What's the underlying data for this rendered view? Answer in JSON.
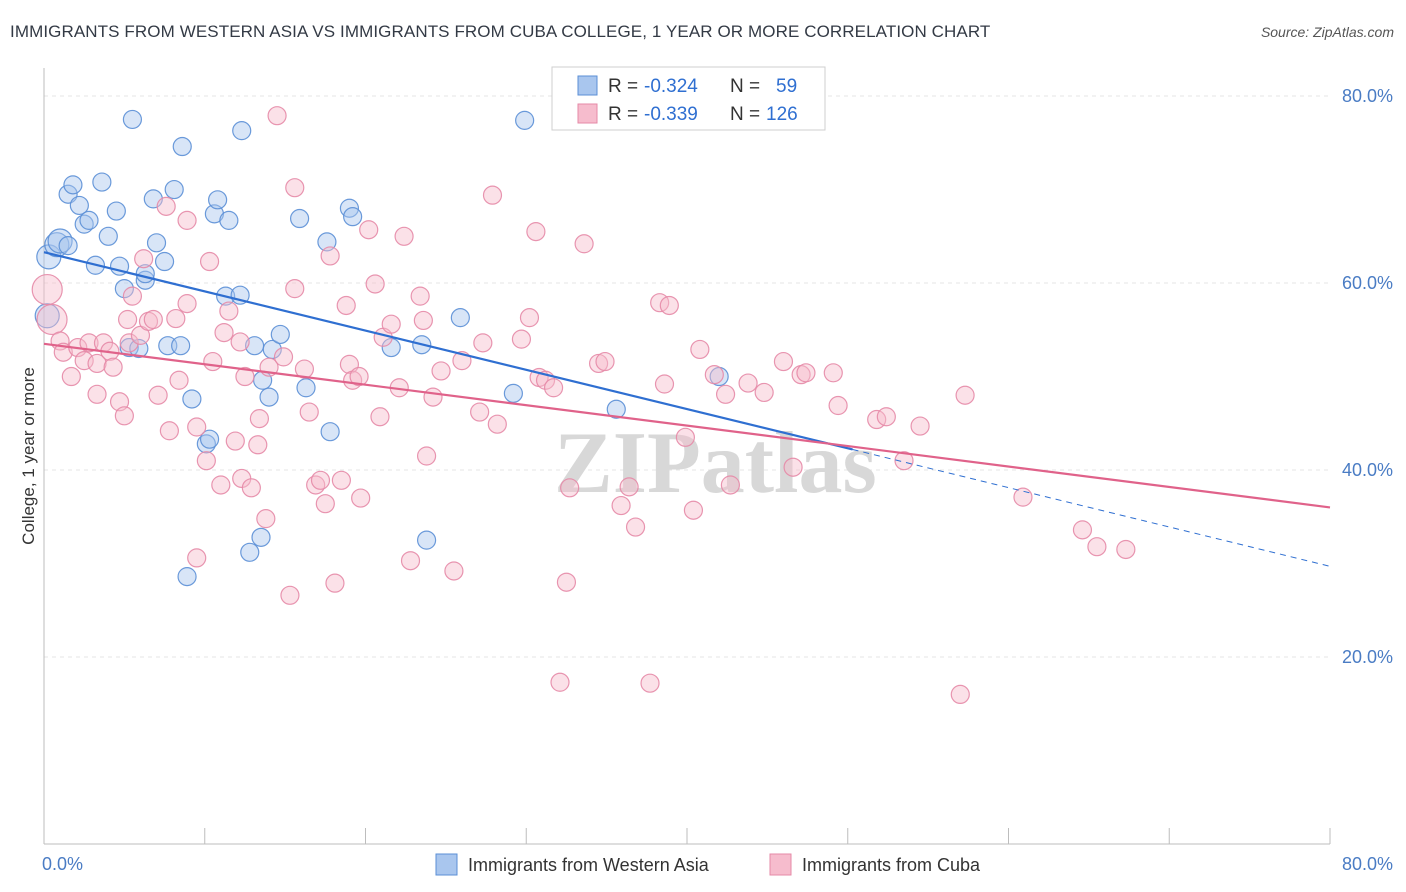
{
  "chart_data": {
    "type": "scatter",
    "title": "IMMIGRANTS FROM WESTERN ASIA VS IMMIGRANTS FROM CUBA COLLEGE, 1 YEAR OR MORE CORRELATION CHART",
    "source": "Source: ZipAtlas.com",
    "ylabel": "College, 1 year or more",
    "xlim": [
      0,
      80
    ],
    "ylim": [
      0,
      83
    ],
    "x_tick_labels": [
      {
        "value": 0,
        "label": "0.0%"
      },
      {
        "value": 80,
        "label": "80.0%"
      }
    ],
    "y_tick_labels": [
      {
        "value": 20,
        "label": "20.0%"
      },
      {
        "value": 40,
        "label": "40.0%"
      },
      {
        "value": 60,
        "label": "60.0%"
      },
      {
        "value": 80,
        "label": "80.0%"
      }
    ],
    "watermark": "ZIPatlas",
    "legend": [
      {
        "r_label": "R =",
        "r_value": "-0.324",
        "n_label": "N =",
        "n_value": "59"
      },
      {
        "r_label": "R =",
        "r_value": "-0.339",
        "n_label": "N =",
        "n_value": "126"
      }
    ],
    "series": [
      {
        "name": "Immigrants from Western Asia",
        "color": "#5b8fd6",
        "fill": "#a9c6ee",
        "trend": {
          "x0": 0,
          "y0": 63.3,
          "x1": 50.3,
          "y1": 42.2,
          "dash_x1": 80,
          "dash_y1": 29.7
        },
        "points": [
          [
            0.3,
            62.8
          ],
          [
            0.8,
            64.1
          ],
          [
            0.2,
            56.5
          ],
          [
            1.0,
            64.5
          ],
          [
            1.5,
            64.0
          ],
          [
            1.5,
            69.5
          ],
          [
            1.8,
            70.5
          ],
          [
            2.2,
            68.3
          ],
          [
            2.5,
            66.3
          ],
          [
            2.8,
            66.7
          ],
          [
            3.2,
            61.9
          ],
          [
            3.6,
            70.8
          ],
          [
            4.0,
            65.0
          ],
          [
            4.5,
            67.7
          ],
          [
            4.7,
            61.8
          ],
          [
            5.0,
            59.4
          ],
          [
            5.3,
            53.1
          ],
          [
            5.5,
            77.5
          ],
          [
            5.9,
            53.0
          ],
          [
            6.3,
            60.3
          ],
          [
            6.3,
            61.0
          ],
          [
            6.8,
            69.0
          ],
          [
            7.0,
            64.3
          ],
          [
            7.5,
            62.3
          ],
          [
            7.7,
            53.3
          ],
          [
            8.1,
            70.0
          ],
          [
            8.5,
            53.3
          ],
          [
            8.6,
            74.6
          ],
          [
            8.9,
            28.6
          ],
          [
            9.2,
            47.6
          ],
          [
            10.1,
            42.8
          ],
          [
            10.3,
            43.3
          ],
          [
            10.6,
            67.4
          ],
          [
            10.8,
            68.9
          ],
          [
            11.3,
            58.6
          ],
          [
            11.5,
            66.7
          ],
          [
            12.3,
            76.3
          ],
          [
            12.2,
            58.7
          ],
          [
            12.8,
            31.2
          ],
          [
            13.1,
            53.3
          ],
          [
            13.5,
            32.8
          ],
          [
            13.6,
            49.6
          ],
          [
            14.0,
            47.8
          ],
          [
            14.2,
            52.9
          ],
          [
            14.7,
            54.5
          ],
          [
            15.9,
            66.9
          ],
          [
            16.3,
            48.8
          ],
          [
            17.6,
            64.4
          ],
          [
            17.8,
            44.1
          ],
          [
            19.0,
            68.0
          ],
          [
            19.2,
            67.1
          ],
          [
            21.6,
            53.1
          ],
          [
            23.5,
            53.4
          ],
          [
            23.8,
            32.5
          ],
          [
            25.9,
            56.3
          ],
          [
            29.2,
            48.2
          ],
          [
            29.9,
            77.4
          ],
          [
            35.6,
            46.5
          ],
          [
            42.0,
            50.0
          ]
        ]
      },
      {
        "name": "Immigrants from Cuba",
        "color": "#e58aa7",
        "fill": "#f6bccd",
        "trend": {
          "x0": 0,
          "y0": 53.5,
          "x1": 80,
          "y1": 36.0
        },
        "points": [
          [
            0.2,
            59.3
          ],
          [
            0.5,
            56.1
          ],
          [
            1.0,
            53.8
          ],
          [
            1.2,
            52.6
          ],
          [
            1.7,
            50.0
          ],
          [
            2.1,
            53.1
          ],
          [
            2.5,
            51.7
          ],
          [
            2.8,
            53.6
          ],
          [
            3.3,
            51.4
          ],
          [
            3.3,
            48.1
          ],
          [
            3.7,
            53.6
          ],
          [
            4.1,
            52.7
          ],
          [
            4.3,
            51.0
          ],
          [
            4.7,
            47.3
          ],
          [
            5.0,
            45.8
          ],
          [
            5.2,
            56.1
          ],
          [
            5.3,
            53.6
          ],
          [
            5.5,
            58.6
          ],
          [
            6.0,
            54.4
          ],
          [
            6.2,
            62.6
          ],
          [
            6.5,
            55.9
          ],
          [
            6.8,
            56.1
          ],
          [
            7.1,
            48.0
          ],
          [
            7.6,
            68.2
          ],
          [
            7.8,
            44.2
          ],
          [
            8.2,
            56.2
          ],
          [
            8.4,
            49.6
          ],
          [
            8.9,
            66.7
          ],
          [
            8.9,
            57.8
          ],
          [
            9.5,
            30.6
          ],
          [
            9.5,
            44.6
          ],
          [
            10.1,
            41.0
          ],
          [
            10.3,
            62.3
          ],
          [
            10.5,
            51.6
          ],
          [
            11.0,
            38.4
          ],
          [
            11.2,
            54.7
          ],
          [
            11.5,
            57.0
          ],
          [
            11.9,
            43.1
          ],
          [
            12.2,
            53.7
          ],
          [
            12.3,
            39.1
          ],
          [
            12.5,
            50.0
          ],
          [
            12.9,
            38.1
          ],
          [
            13.3,
            42.7
          ],
          [
            13.4,
            45.5
          ],
          [
            13.8,
            34.8
          ],
          [
            14.0,
            51.0
          ],
          [
            14.5,
            77.9
          ],
          [
            14.9,
            52.1
          ],
          [
            15.3,
            26.6
          ],
          [
            15.6,
            70.2
          ],
          [
            15.6,
            59.4
          ],
          [
            16.2,
            50.8
          ],
          [
            16.5,
            46.2
          ],
          [
            16.9,
            38.4
          ],
          [
            17.2,
            38.9
          ],
          [
            17.5,
            36.4
          ],
          [
            17.8,
            62.9
          ],
          [
            18.1,
            27.9
          ],
          [
            18.5,
            38.9
          ],
          [
            18.8,
            57.6
          ],
          [
            19.0,
            51.3
          ],
          [
            19.2,
            49.6
          ],
          [
            19.6,
            50.0
          ],
          [
            19.7,
            37.0
          ],
          [
            20.2,
            65.7
          ],
          [
            20.6,
            59.9
          ],
          [
            20.9,
            45.7
          ],
          [
            21.1,
            54.2
          ],
          [
            21.6,
            55.6
          ],
          [
            22.1,
            48.8
          ],
          [
            22.4,
            65.0
          ],
          [
            22.8,
            30.3
          ],
          [
            23.4,
            58.6
          ],
          [
            23.6,
            56.0
          ],
          [
            23.8,
            41.5
          ],
          [
            24.2,
            47.8
          ],
          [
            24.7,
            50.6
          ],
          [
            25.5,
            29.2
          ],
          [
            26.0,
            51.7
          ],
          [
            27.1,
            46.2
          ],
          [
            27.3,
            53.6
          ],
          [
            27.9,
            69.4
          ],
          [
            28.2,
            44.9
          ],
          [
            29.7,
            54.0
          ],
          [
            30.2,
            56.3
          ],
          [
            30.6,
            65.5
          ],
          [
            30.8,
            49.9
          ],
          [
            31.2,
            49.6
          ],
          [
            31.7,
            48.8
          ],
          [
            32.1,
            17.3
          ],
          [
            32.5,
            28.0
          ],
          [
            32.7,
            38.1
          ],
          [
            33.6,
            64.2
          ],
          [
            34.5,
            51.4
          ],
          [
            34.9,
            51.6
          ],
          [
            35.9,
            36.2
          ],
          [
            36.4,
            38.2
          ],
          [
            36.8,
            33.9
          ],
          [
            37.7,
            17.2
          ],
          [
            38.3,
            57.9
          ],
          [
            38.6,
            49.2
          ],
          [
            38.9,
            57.6
          ],
          [
            39.9,
            43.5
          ],
          [
            40.4,
            35.7
          ],
          [
            40.8,
            52.9
          ],
          [
            41.7,
            50.2
          ],
          [
            42.4,
            48.1
          ],
          [
            42.7,
            38.4
          ],
          [
            43.8,
            49.3
          ],
          [
            44.8,
            48.3
          ],
          [
            46.0,
            51.6
          ],
          [
            47.1,
            50.2
          ],
          [
            46.6,
            40.3
          ],
          [
            47.4,
            50.4
          ],
          [
            49.1,
            50.4
          ],
          [
            49.4,
            46.9
          ],
          [
            51.8,
            45.4
          ],
          [
            52.4,
            45.7
          ],
          [
            53.5,
            41.0
          ],
          [
            54.5,
            44.7
          ],
          [
            57.0,
            16.0
          ],
          [
            57.3,
            48.0
          ],
          [
            60.9,
            37.1
          ],
          [
            64.6,
            33.6
          ],
          [
            65.5,
            31.8
          ],
          [
            67.3,
            31.5
          ]
        ]
      }
    ],
    "bottom_legend": [
      {
        "label": "Immigrants from Western Asia"
      },
      {
        "label": "Immigrants from Cuba"
      }
    ]
  }
}
